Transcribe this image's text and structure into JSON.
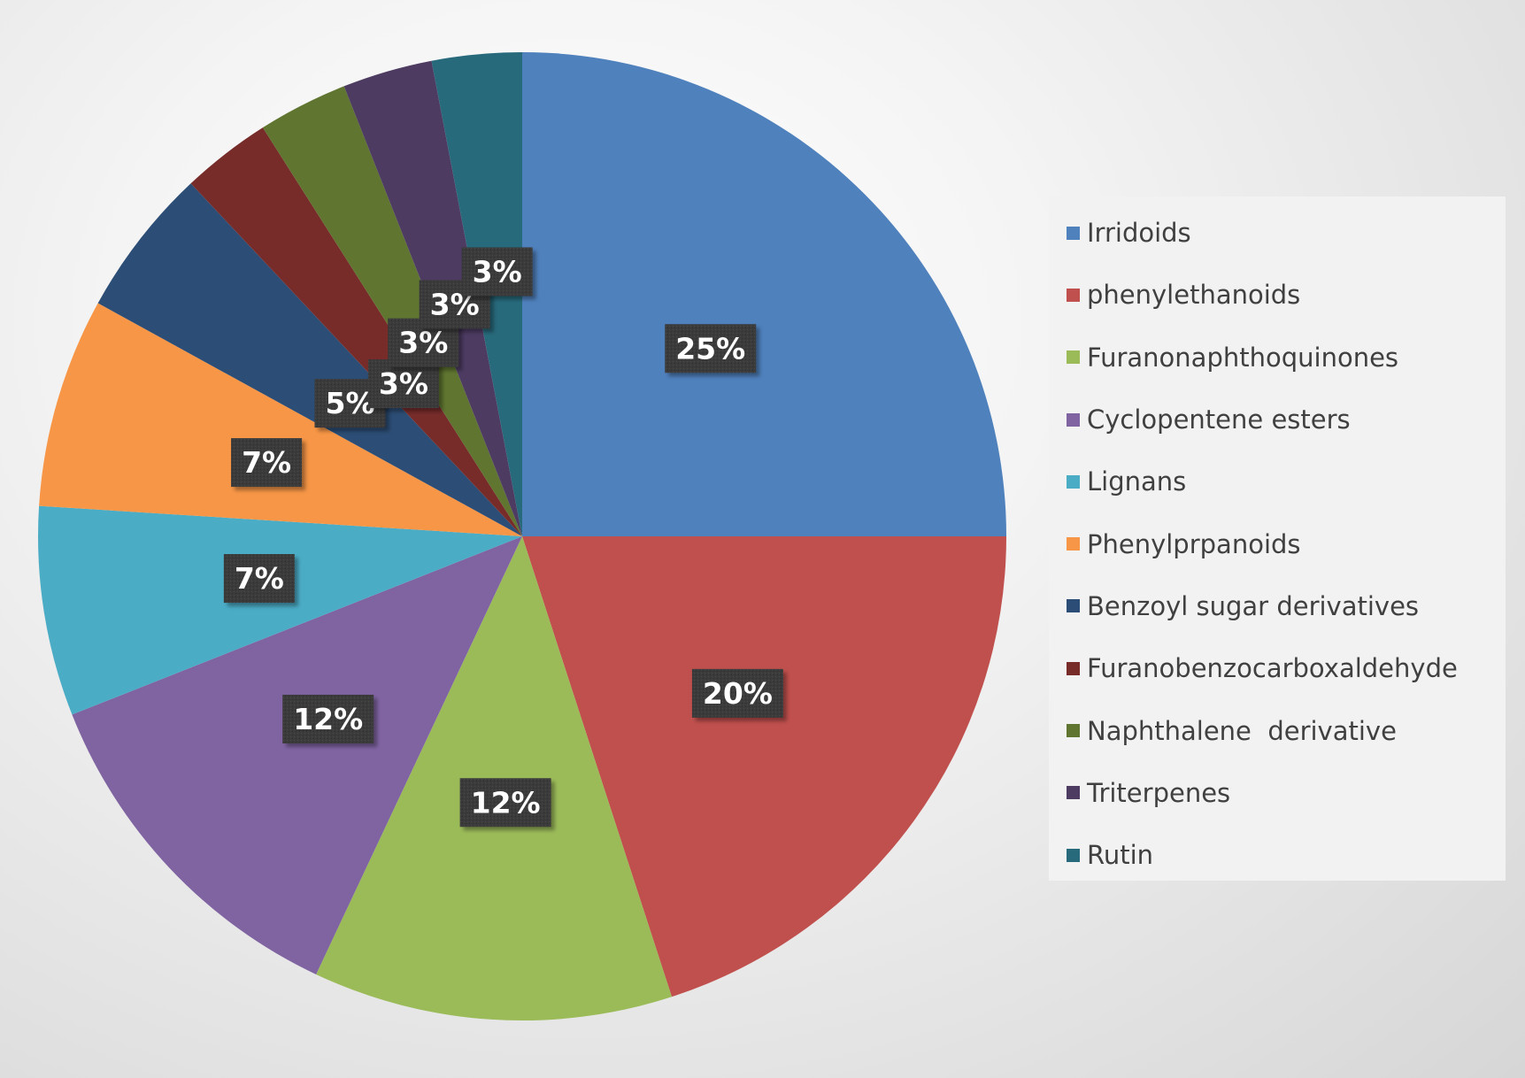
{
  "chart_data": {
    "type": "pie",
    "title": "",
    "start_angle": "12 o'clock, clockwise",
    "legend_position": "right",
    "slices": [
      {
        "name": "Irridoids",
        "value": 25,
        "label": "25%",
        "color": "#4f81bd"
      },
      {
        "name": "phenylethanoids",
        "value": 20,
        "label": "20%",
        "color": "#c0504d"
      },
      {
        "name": "Furanonaphthoquinones",
        "value": 12,
        "label": "12%",
        "color": "#9bbb59"
      },
      {
        "name": "Cyclopentene esters",
        "value": 12,
        "label": "12%",
        "color": "#8064a2"
      },
      {
        "name": "Lignans",
        "value": 7,
        "label": "7%",
        "color": "#4bacc6"
      },
      {
        "name": "Phenylprpanoids",
        "value": 7,
        "label": "7%",
        "color": "#f79646"
      },
      {
        "name": "Benzoyl sugar derivatives",
        "value": 5,
        "label": "5%",
        "color": "#2c4d75"
      },
      {
        "name": "Furanobenzocarboxaldehyde",
        "value": 3,
        "label": "3%",
        "color": "#772c2a"
      },
      {
        "name": "Naphthalene  derivative",
        "value": 3,
        "label": "3%",
        "color": "#5f7530"
      },
      {
        "name": "Triterpenes",
        "value": 3,
        "label": "3%",
        "color": "#4d3b62"
      },
      {
        "name": "Rutin",
        "value": 3,
        "label": "3%",
        "color": "#276a7c"
      }
    ]
  }
}
